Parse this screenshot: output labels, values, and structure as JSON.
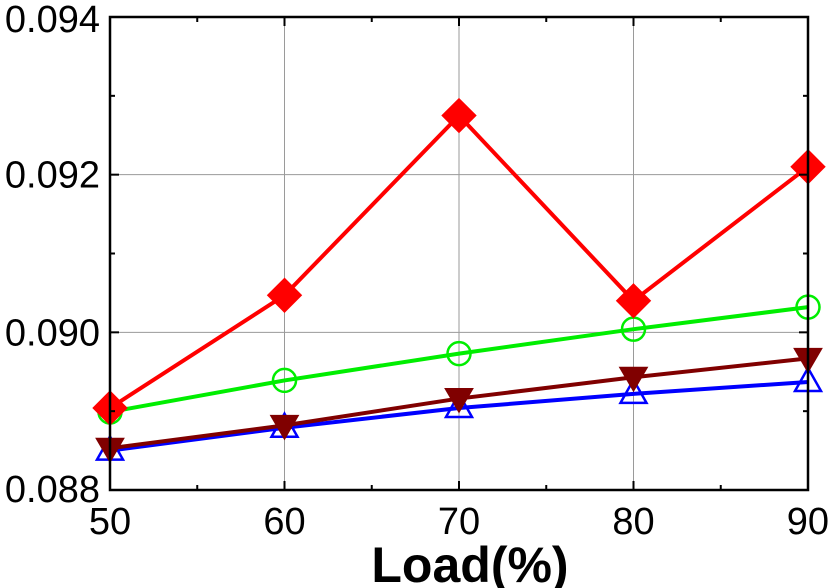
{
  "chart_data": {
    "type": "line",
    "xlabel": "Load(%)",
    "ylabel": "",
    "x": [
      50,
      60,
      70,
      80,
      90
    ],
    "xlim": [
      50,
      90
    ],
    "ylim": [
      0.088,
      0.094
    ],
    "x_ticks": [
      "50",
      "60",
      "70",
      "80",
      "90"
    ],
    "y_ticks": [
      "0.088",
      "0.090",
      "0.092",
      "0.094"
    ],
    "grid": true,
    "series": [
      {
        "color": "#ff0000",
        "marker": "diamond-filled",
        "values": [
          0.08904,
          0.09047,
          0.09275,
          0.0904,
          0.0921
        ]
      },
      {
        "color": "#00ee00",
        "marker": "circle-open",
        "values": [
          0.08899,
          0.08939,
          0.08973,
          0.09004,
          0.09032
        ]
      },
      {
        "color": "#800000",
        "marker": "triangle-down-filled",
        "values": [
          0.08853,
          0.08882,
          0.08916,
          0.08943,
          0.08967
        ]
      },
      {
        "color": "#0000ff",
        "marker": "triangle-up-open",
        "values": [
          0.0885,
          0.08879,
          0.08904,
          0.08922,
          0.08937
        ]
      }
    ]
  }
}
